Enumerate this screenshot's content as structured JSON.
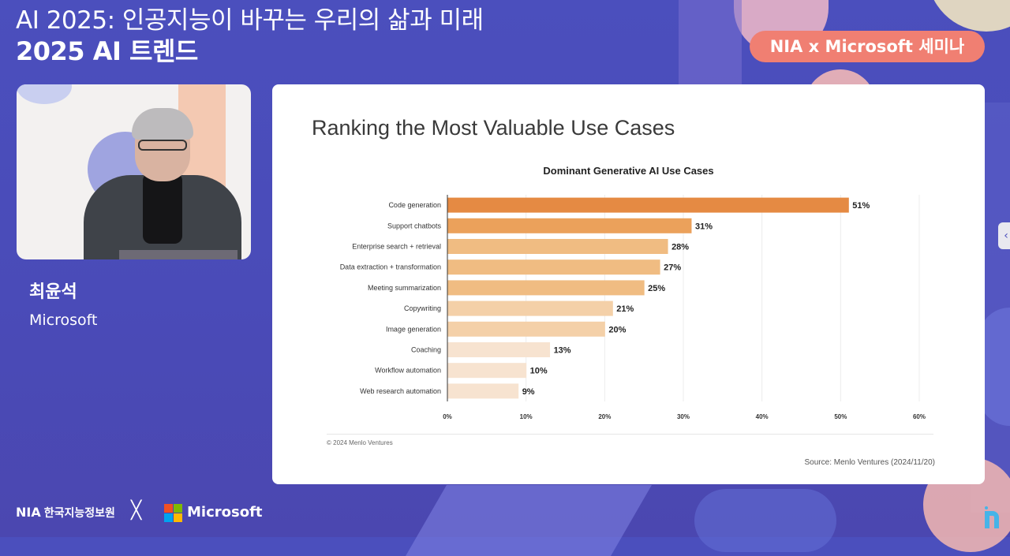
{
  "header": {
    "title_line1": "AI 2025: 인공지능이 바꾸는 우리의 삶과 미래",
    "title_line2": "2025 AI 트렌드",
    "badge": "NIA x Microsoft 세미나"
  },
  "speaker": {
    "name": "최윤석",
    "organization": "Microsoft"
  },
  "slide": {
    "title": "Ranking the Most Valuable Use Cases",
    "copyright": "© 2024 Menlo Ventures",
    "source": "Source: Menlo Ventures (2024/11/20)"
  },
  "chart_data": {
    "type": "bar",
    "orientation": "horizontal",
    "title": "Dominant Generative AI Use Cases",
    "categories": [
      "Code generation",
      "Support chatbots",
      "Enterprise search + retrieval",
      "Data extraction + transformation",
      "Meeting summarization",
      "Copywriting",
      "Image generation",
      "Coaching",
      "Workflow automation",
      "Web research automation"
    ],
    "values": [
      51,
      31,
      28,
      27,
      25,
      21,
      20,
      13,
      10,
      9
    ],
    "value_labels": [
      "51%",
      "31%",
      "28%",
      "27%",
      "25%",
      "21%",
      "20%",
      "13%",
      "10%",
      "9%"
    ],
    "xlim": [
      0,
      60
    ],
    "ticks": [
      0,
      10,
      20,
      30,
      40,
      50,
      60
    ],
    "tick_labels": [
      "0%",
      "10%",
      "20%",
      "30%",
      "40%",
      "50%",
      "60%"
    ],
    "colors": [
      "#e58a43",
      "#eba15b",
      "#f0bc82",
      "#f0bc82",
      "#f0bc82",
      "#f4d0a8",
      "#f4d0a8",
      "#f7e3d0",
      "#f7e3d0",
      "#f7e3d0"
    ],
    "grid": true
  },
  "footer": {
    "nia": "NIA",
    "nia_full": "한국지능정보원",
    "x": "╳",
    "microsoft": "Microsoft"
  },
  "icons": {
    "side_tab": "chevron-left-icon"
  }
}
